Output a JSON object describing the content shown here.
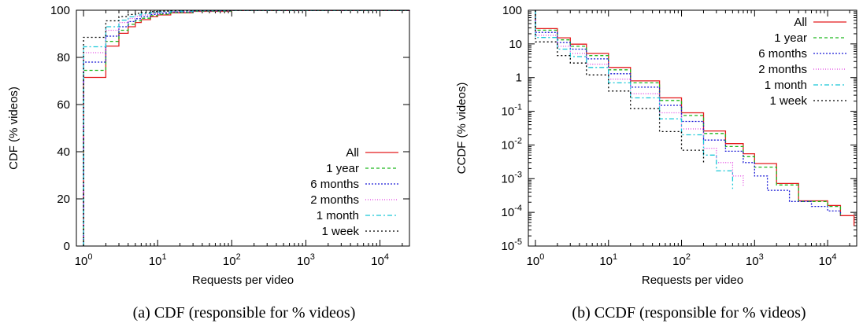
{
  "chart_data": [
    {
      "type": "line",
      "caption": "(a) CDF (responsible for % videos)",
      "xlabel": "Requests per video",
      "ylabel": "CDF (% videos)",
      "x_scale": "log",
      "xlim": [
        0.8,
        25000
      ],
      "ylim": [
        0,
        100
      ],
      "x_ticks": [
        {
          "value": 1,
          "base": "10",
          "exp": "0"
        },
        {
          "value": 10,
          "base": "10",
          "exp": "1"
        },
        {
          "value": 100,
          "base": "10",
          "exp": "2"
        },
        {
          "value": 1000,
          "base": "10",
          "exp": "3"
        },
        {
          "value": 10000,
          "base": "10",
          "exp": "4"
        }
      ],
      "y_ticks": [
        {
          "value": 0,
          "label": "0"
        },
        {
          "value": 20,
          "label": "20"
        },
        {
          "value": 40,
          "label": "40"
        },
        {
          "value": 60,
          "label": "60"
        },
        {
          "value": 80,
          "label": "80"
        },
        {
          "value": 100,
          "label": "100"
        }
      ],
      "legend_position": "bottom-right",
      "series": [
        {
          "name": "All",
          "color": "#e41a1c",
          "dash": "",
          "x": [
            1,
            2,
            3,
            4,
            5,
            6,
            8,
            10,
            15,
            30,
            100,
            25000
          ],
          "y": [
            71.5,
            84.8,
            90.2,
            93.0,
            94.8,
            96.0,
            97.3,
            98.0,
            98.9,
            99.5,
            99.9,
            100
          ]
        },
        {
          "name": "1 year",
          "color": "#1db81d",
          "dash": "4,3",
          "x": [
            1,
            2,
            3,
            4,
            5,
            6,
            8,
            10,
            15,
            30,
            100,
            25000
          ],
          "y": [
            74.5,
            86.8,
            91.5,
            94.0,
            95.5,
            96.6,
            97.7,
            98.3,
            99.0,
            99.6,
            99.9,
            100
          ]
        },
        {
          "name": "6 months",
          "color": "#1a1ad6",
          "dash": "2,2",
          "x": [
            1,
            2,
            3,
            4,
            5,
            6,
            8,
            10,
            15,
            30,
            100,
            25000
          ],
          "y": [
            78.0,
            89.0,
            93.0,
            95.2,
            96.4,
            97.3,
            98.2,
            98.7,
            99.3,
            99.7,
            99.95,
            100
          ]
        },
        {
          "name": "2 months",
          "color": "#e040e0",
          "dash": "1,2",
          "x": [
            1,
            2,
            3,
            4,
            5,
            6,
            8,
            10,
            15,
            30,
            100,
            25000
          ],
          "y": [
            82.0,
            91.5,
            94.8,
            96.5,
            97.4,
            98.0,
            98.7,
            99.1,
            99.5,
            99.8,
            99.95,
            100
          ]
        },
        {
          "name": "1 month",
          "color": "#19c8d8",
          "dash": "6,3,2,3",
          "x": [
            1,
            2,
            3,
            4,
            5,
            6,
            8,
            10,
            15,
            30,
            100,
            25000
          ],
          "y": [
            84.5,
            93.0,
            95.8,
            97.2,
            98.0,
            98.5,
            99.0,
            99.3,
            99.6,
            99.85,
            99.97,
            100
          ]
        },
        {
          "name": "1 week",
          "color": "#000000",
          "dash": "2,3",
          "x": [
            1,
            2,
            3,
            4,
            5,
            6,
            8,
            10,
            15,
            30,
            100,
            25000
          ],
          "y": [
            88.5,
            95.5,
            97.3,
            98.2,
            98.7,
            99.0,
            99.4,
            99.6,
            99.8,
            99.9,
            99.98,
            100
          ]
        }
      ]
    },
    {
      "type": "line",
      "caption": "(b) CCDF (responsible for % videos)",
      "xlabel": "Requests per video",
      "ylabel": "CCDF (% videos)",
      "x_scale": "log",
      "y_scale": "log",
      "xlim": [
        0.8,
        25000
      ],
      "ylim": [
        1e-05,
        100
      ],
      "x_ticks": [
        {
          "value": 1,
          "base": "10",
          "exp": "0"
        },
        {
          "value": 10,
          "base": "10",
          "exp": "1"
        },
        {
          "value": 100,
          "base": "10",
          "exp": "2"
        },
        {
          "value": 1000,
          "base": "10",
          "exp": "3"
        },
        {
          "value": 10000,
          "base": "10",
          "exp": "4"
        }
      ],
      "y_ticks": [
        {
          "value": 100,
          "base": "100",
          "exp": ""
        },
        {
          "value": 10,
          "base": "10",
          "exp": ""
        },
        {
          "value": 1,
          "base": "1",
          "exp": ""
        },
        {
          "value": 0.1,
          "base": "10",
          "exp": "-1"
        },
        {
          "value": 0.01,
          "base": "10",
          "exp": "-2"
        },
        {
          "value": 0.001,
          "base": "10",
          "exp": "-3"
        },
        {
          "value": 0.0001,
          "base": "10",
          "exp": "-4"
        },
        {
          "value": 1e-05,
          "base": "10",
          "exp": "-5"
        }
      ],
      "legend_position": "top-right",
      "series": [
        {
          "name": "All",
          "color": "#e41a1c",
          "dash": "",
          "x": [
            1,
            2,
            3,
            5,
            10,
            20,
            50,
            100,
            200,
            400,
            700,
            1000,
            2000,
            4000,
            10000,
            15000,
            23000
          ],
          "y": [
            28.5,
            15.2,
            9.8,
            5.2,
            2.0,
            0.8,
            0.25,
            0.09,
            0.026,
            0.011,
            0.0055,
            0.0028,
            0.00072,
            0.00022,
            0.00016,
            8e-05,
            4e-05
          ]
        },
        {
          "name": "1 year",
          "color": "#1db81d",
          "dash": "4,3",
          "x": [
            1,
            2,
            3,
            5,
            10,
            20,
            50,
            100,
            200,
            400,
            700,
            1000,
            2000,
            4000,
            10000,
            15000
          ],
          "y": [
            25.5,
            13.2,
            8.5,
            4.5,
            1.7,
            0.7,
            0.21,
            0.075,
            0.022,
            0.009,
            0.0045,
            0.0022,
            0.00065,
            0.00021,
            0.00015,
            8e-05
          ]
        },
        {
          "name": "6 months",
          "color": "#1a1ad6",
          "dash": "2,2",
          "x": [
            1,
            2,
            3,
            5,
            10,
            20,
            50,
            100,
            200,
            400,
            700,
            1000,
            1500,
            3000,
            6000,
            10000,
            15000
          ],
          "y": [
            22.0,
            11.0,
            7.0,
            3.6,
            1.3,
            0.52,
            0.15,
            0.05,
            0.014,
            0.0065,
            0.003,
            0.0012,
            0.00045,
            0.00021,
            0.00015,
            0.00011,
            8e-05
          ]
        },
        {
          "name": "2 months",
          "color": "#e040e0",
          "dash": "1,2",
          "x": [
            1,
            2,
            3,
            5,
            10,
            20,
            50,
            100,
            200,
            300,
            500,
            700
          ],
          "y": [
            18.0,
            8.5,
            5.2,
            2.5,
            0.9,
            0.33,
            0.09,
            0.03,
            0.008,
            0.003,
            0.0012,
            0.0006
          ]
        },
        {
          "name": "1 month",
          "color": "#19c8d8",
          "dash": "6,3,2,3",
          "x": [
            1,
            2,
            3,
            5,
            10,
            20,
            50,
            100,
            200,
            300,
            500
          ],
          "y": [
            15.5,
            7.0,
            4.2,
            2.0,
            0.7,
            0.25,
            0.06,
            0.02,
            0.005,
            0.0017,
            0.0005
          ]
        },
        {
          "name": "1 week",
          "color": "#000000",
          "dash": "2,3",
          "x": [
            1,
            2,
            3,
            5,
            10,
            20,
            50,
            100,
            200
          ],
          "y": [
            11.5,
            4.5,
            2.7,
            1.2,
            0.4,
            0.12,
            0.025,
            0.007,
            0.003
          ]
        }
      ]
    }
  ]
}
